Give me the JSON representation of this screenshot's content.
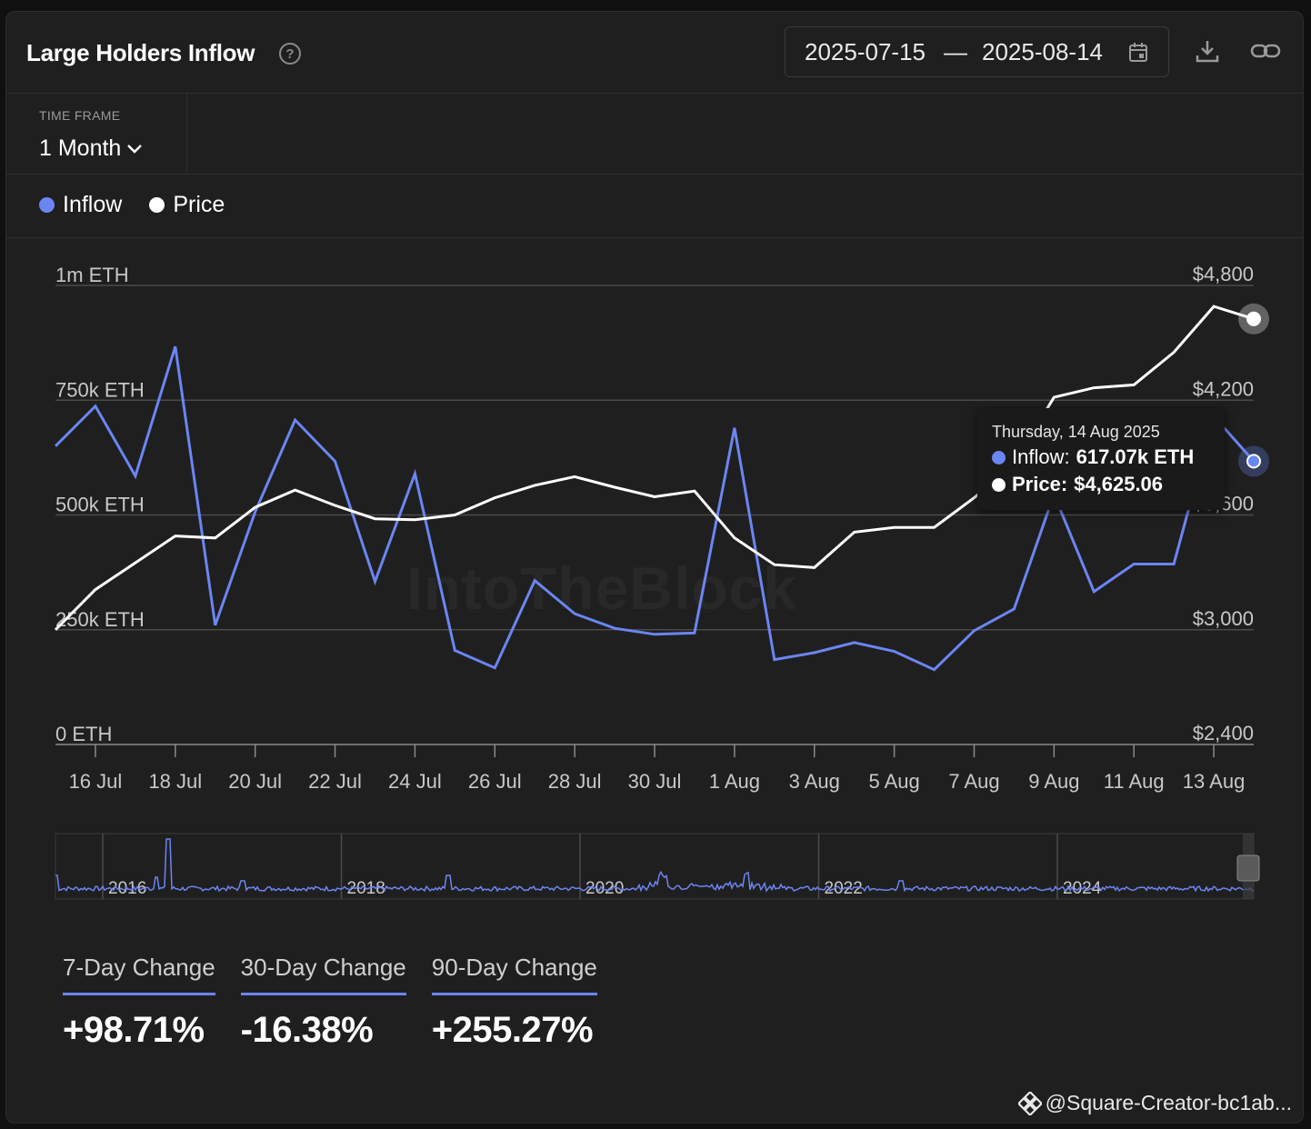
{
  "header": {
    "title": "Large Holders Inflow",
    "help_icon": "?",
    "date_from": "2025-07-15",
    "date_sep": "—",
    "date_to": "2025-08-14"
  },
  "controls": {
    "timeframe_label": "TIME FRAME",
    "timeframe_value": "1 Month"
  },
  "legend": [
    {
      "name": "Inflow",
      "color": "#6b85f2"
    },
    {
      "name": "Price",
      "color": "#ffffff"
    }
  ],
  "watermark": "IntoTheBlock",
  "tooltip": {
    "date": "Thursday, 14 Aug 2025",
    "inflow_label": "Inflow:",
    "inflow_value": "617.07k ETH",
    "price_label": "Price:",
    "price_value": "$4,625.06"
  },
  "chart_data": {
    "type": "line",
    "x": [
      "2025-07-15",
      "2025-07-16",
      "2025-07-17",
      "2025-07-18",
      "2025-07-19",
      "2025-07-20",
      "2025-07-21",
      "2025-07-22",
      "2025-07-23",
      "2025-07-24",
      "2025-07-25",
      "2025-07-26",
      "2025-07-27",
      "2025-07-28",
      "2025-07-29",
      "2025-07-30",
      "2025-07-31",
      "2025-08-01",
      "2025-08-02",
      "2025-08-03",
      "2025-08-04",
      "2025-08-05",
      "2025-08-06",
      "2025-08-07",
      "2025-08-08",
      "2025-08-09",
      "2025-08-10",
      "2025-08-11",
      "2025-08-12",
      "2025-08-13",
      "2025-08-14"
    ],
    "x_tick_labels": [
      "16 Jul",
      "18 Jul",
      "20 Jul",
      "22 Jul",
      "24 Jul",
      "26 Jul",
      "28 Jul",
      "30 Jul",
      "1 Aug",
      "3 Aug",
      "5 Aug",
      "7 Aug",
      "9 Aug",
      "11 Aug",
      "13 Aug"
    ],
    "series": [
      {
        "name": "Inflow",
        "axis": "left",
        "color": "#6b85f2",
        "values": [
          650000,
          737000,
          585000,
          867000,
          260000,
          507000,
          707000,
          617000,
          355000,
          590000,
          205000,
          167000,
          357000,
          285000,
          253000,
          240000,
          243000,
          690000,
          185000,
          200000,
          222000,
          203000,
          163000,
          248000,
          295000,
          545000,
          333000,
          393000,
          393000,
          715000,
          617070
        ]
      },
      {
        "name": "Price",
        "axis": "right",
        "color": "#ffffff",
        "values": [
          3000,
          3210,
          3350,
          3490,
          3480,
          3640,
          3730,
          3650,
          3580,
          3575,
          3600,
          3690,
          3755,
          3800,
          3745,
          3695,
          3725,
          3480,
          3340,
          3325,
          3510,
          3535,
          3535,
          3690,
          3870,
          4215,
          4265,
          4280,
          4450,
          4690,
          4625.06
        ]
      }
    ],
    "y_left": {
      "ticks": [
        "0 ETH",
        "250k ETH",
        "500k ETH",
        "750k ETH",
        "1m ETH"
      ],
      "range": [
        0,
        1000000
      ]
    },
    "y_right": {
      "ticks": [
        "$2,400",
        "$3,000",
        "$3,600",
        "$4,200",
        "$4,800"
      ],
      "range": [
        2400,
        4800
      ]
    },
    "grid": true,
    "legend_position": "top-left"
  },
  "overview": {
    "year_labels": [
      "2016",
      "2018",
      "2020",
      "2022",
      "2024"
    ]
  },
  "changes": [
    {
      "label": "7-Day Change",
      "value": "+98.71%"
    },
    {
      "label": "30-Day Change",
      "value": "-16.38%"
    },
    {
      "label": "90-Day Change",
      "value": "+255.27%"
    }
  ],
  "footer": {
    "credit": "@Square-Creator-bc1ab..."
  }
}
